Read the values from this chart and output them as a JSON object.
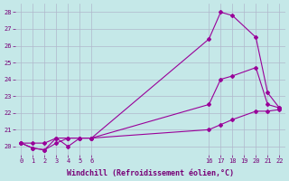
{
  "xlabel": "Windchill (Refroidissement éolien,°C)",
  "bg_color": "#c5e8e8",
  "grid_color": "#b0b8cc",
  "line_color": "#990099",
  "line1": {
    "x": [
      0,
      1,
      2,
      3,
      4,
      5,
      6,
      16,
      17,
      18,
      20,
      21,
      22
    ],
    "y": [
      20.2,
      19.9,
      19.8,
      20.5,
      20.0,
      20.5,
      20.5,
      26.4,
      28.0,
      27.8,
      26.5,
      23.2,
      22.3
    ]
  },
  "line2": {
    "x": [
      0,
      1,
      2,
      3,
      4,
      5,
      6,
      16,
      17,
      18,
      20,
      21,
      22
    ],
    "y": [
      20.2,
      19.9,
      19.8,
      20.2,
      20.5,
      20.5,
      20.5,
      22.5,
      24.0,
      24.2,
      24.7,
      22.5,
      22.3
    ]
  },
  "line3": {
    "x": [
      0,
      1,
      2,
      3,
      4,
      5,
      6,
      16,
      17,
      18,
      20,
      21,
      22
    ],
    "y": [
      20.2,
      20.2,
      20.2,
      20.5,
      20.5,
      20.5,
      20.5,
      21.0,
      21.3,
      21.6,
      22.1,
      22.1,
      22.2
    ]
  },
  "yticks": [
    20,
    21,
    22,
    23,
    24,
    25,
    26,
    27,
    28
  ],
  "xticks": [
    0,
    1,
    2,
    3,
    4,
    5,
    6,
    16,
    17,
    18,
    19,
    20,
    21,
    22
  ],
  "ylim": [
    19.5,
    28.5
  ],
  "xlim": [
    -0.5,
    22.5
  ]
}
